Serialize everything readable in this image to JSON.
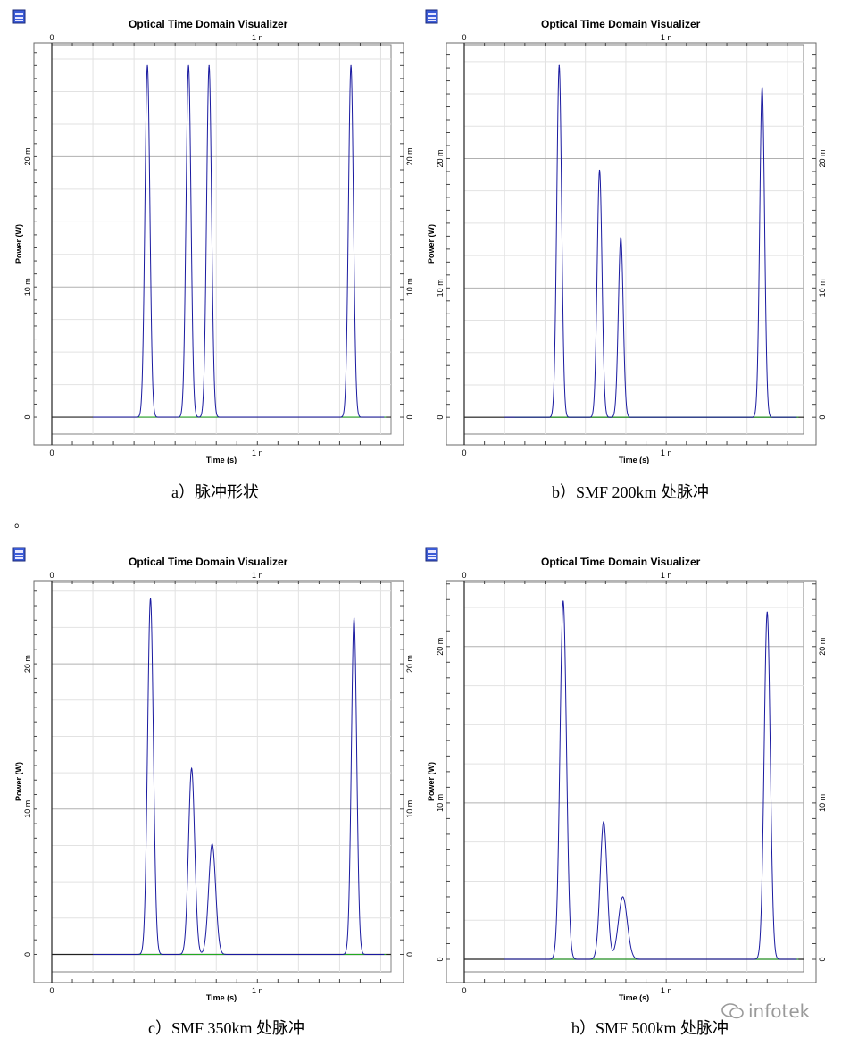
{
  "panels": [
    {
      "window_title": "Optical Time Domain Visualizer",
      "caption": "a）脉冲形状",
      "chart_data": {
        "type": "line",
        "title": "Optical Time Domain Visualizer",
        "xlabel": "Time (s)",
        "ylabel": "Power (W)",
        "xlim": [
          0,
          1.65
        ],
        "ylim": [
          -0.0013,
          0.0286
        ],
        "x_ticks": [
          {
            "value": 0,
            "label": "0"
          },
          {
            "value": 1,
            "label": "1 n"
          }
        ],
        "y_ticks": [
          {
            "value": 0,
            "label": "0"
          },
          {
            "value": 0.01,
            "label": "10 m"
          },
          {
            "value": 0.02,
            "label": "20 m"
          }
        ],
        "series": [
          {
            "color": "#1a1aa0",
            "pulses": [
              {
                "t": 0.465,
                "peak": 0.027,
                "width": 0.012
              },
              {
                "t": 0.665,
                "peak": 0.027,
                "width": 0.012
              },
              {
                "t": 0.765,
                "peak": 0.027,
                "width": 0.012
              },
              {
                "t": 1.455,
                "peak": 0.027,
                "width": 0.012
              }
            ]
          },
          {
            "color": "#22aa22",
            "baseline": 0
          }
        ],
        "grid": true,
        "legend": "none"
      }
    },
    {
      "window_title": "Optical Time Domain Visualizer",
      "caption": "b）SMF 200km 处脉冲",
      "chart_data": {
        "type": "line",
        "title": "Optical Time Domain Visualizer",
        "xlabel": "Time (s)",
        "ylabel": "Power (W)",
        "xlim": [
          0,
          1.68
        ],
        "ylim": [
          -0.0013,
          0.0288
        ],
        "x_ticks": [
          {
            "value": 0,
            "label": "0"
          },
          {
            "value": 1,
            "label": "1 n"
          }
        ],
        "y_ticks": [
          {
            "value": 0,
            "label": "0"
          },
          {
            "value": 0.01,
            "label": "10 m"
          },
          {
            "value": 0.02,
            "label": "20 m"
          }
        ],
        "series": [
          {
            "color": "#1a1aa0",
            "pulses": [
              {
                "t": 0.47,
                "peak": 0.0272,
                "width": 0.012
              },
              {
                "t": 0.67,
                "peak": 0.0191,
                "width": 0.012
              },
              {
                "t": 0.775,
                "peak": 0.0139,
                "width": 0.012
              },
              {
                "t": 1.475,
                "peak": 0.0255,
                "width": 0.012
              }
            ]
          },
          {
            "color": "#22aa22",
            "baseline": 0
          }
        ],
        "grid": true,
        "legend": "none"
      }
    },
    {
      "window_title": "Optical Time Domain Visualizer",
      "caption": "c）SMF 350km 处脉冲",
      "chart_data": {
        "type": "line",
        "title": "Optical Time Domain Visualizer",
        "xlabel": "Time (s)",
        "ylabel": "Power (W)",
        "xlim": [
          0,
          1.65
        ],
        "ylim": [
          -0.0012,
          0.0256
        ],
        "x_ticks": [
          {
            "value": 0,
            "label": "0"
          },
          {
            "value": 1,
            "label": "1 n"
          }
        ],
        "y_ticks": [
          {
            "value": 0,
            "label": "0"
          },
          {
            "value": 0.01,
            "label": "10 m"
          },
          {
            "value": 0.02,
            "label": "20 m"
          }
        ],
        "series": [
          {
            "color": "#1a1aa0",
            "pulses": [
              {
                "t": 0.48,
                "peak": 0.0245,
                "width": 0.014
              },
              {
                "t": 0.68,
                "peak": 0.0128,
                "width": 0.015
              },
              {
                "t": 0.78,
                "peak": 0.0076,
                "width": 0.017
              },
              {
                "t": 1.47,
                "peak": 0.0231,
                "width": 0.013
              }
            ]
          },
          {
            "color": "#22aa22",
            "baseline": 0
          }
        ],
        "grid": true,
        "legend": "none"
      }
    },
    {
      "window_title": "Optical Time Domain Visualizer",
      "caption": "b）SMF 500km 处脉冲",
      "chart_data": {
        "type": "line",
        "title": "Optical Time Domain Visualizer",
        "xlabel": "Time (s)",
        "ylabel": "Power (W)",
        "xlim": [
          0,
          1.68
        ],
        "ylim": [
          -0.0008,
          0.0241
        ],
        "x_ticks": [
          {
            "value": 0,
            "label": "0"
          },
          {
            "value": 1,
            "label": "1 n"
          }
        ],
        "y_ticks": [
          {
            "value": 0,
            "label": "0"
          },
          {
            "value": 0.01,
            "label": "10 m"
          },
          {
            "value": 0.02,
            "label": "20 m"
          }
        ],
        "series": [
          {
            "color": "#1a1aa0",
            "pulses": [
              {
                "t": 0.49,
                "peak": 0.0229,
                "width": 0.016
              },
              {
                "t": 0.69,
                "peak": 0.0088,
                "width": 0.017
              },
              {
                "t": 0.785,
                "peak": 0.004,
                "width": 0.022
              },
              {
                "t": 1.5,
                "peak": 0.0222,
                "width": 0.015
              }
            ]
          },
          {
            "color": "#22aa22",
            "baseline": 0
          }
        ],
        "grid": true,
        "legend": "none"
      }
    }
  ],
  "separator_mark": "。",
  "watermark": "infotek"
}
